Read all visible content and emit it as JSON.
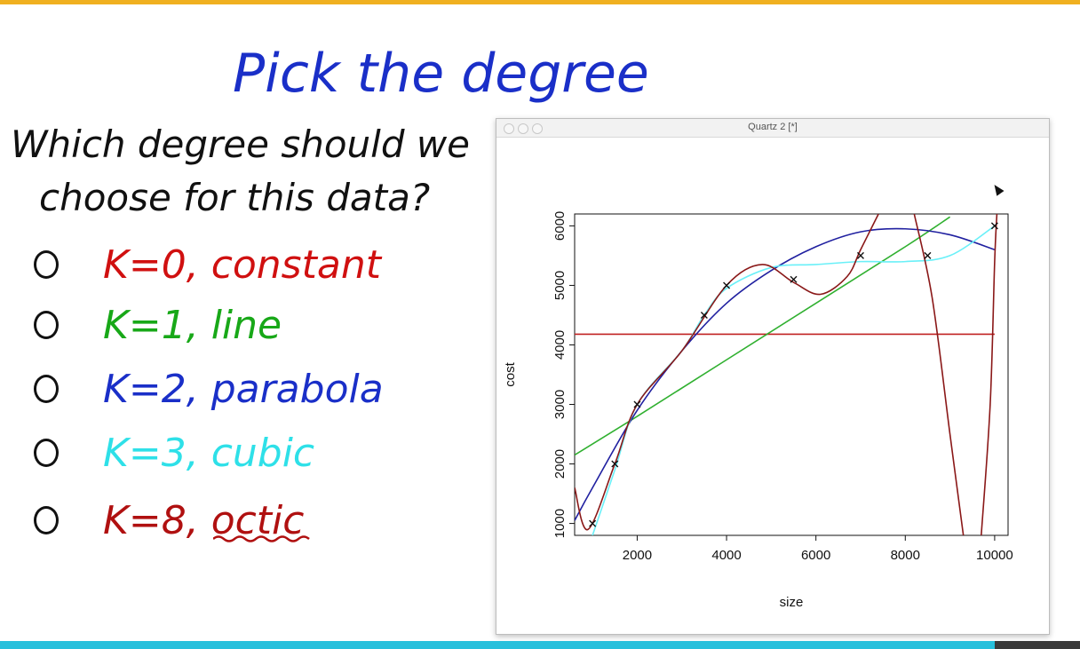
{
  "page": {
    "title": "Pick the degree",
    "question_line1": "Which degree should we",
    "question_line2": "choose for this data?",
    "options": [
      {
        "label": "K=0, constant",
        "color": "#d01010"
      },
      {
        "label": "K=1, line",
        "color": "#18a818"
      },
      {
        "label": "K=2, parabola",
        "color": "#1a2fc8"
      },
      {
        "label": "K=3, cubic",
        "color": "#2ee0e8"
      },
      {
        "label": "K=8, octic",
        "color": "#b01010"
      }
    ]
  },
  "window": {
    "title": "Quartz 2 [*]"
  },
  "chart_data": {
    "type": "scatter",
    "xlabel": "size",
    "ylabel": "cost",
    "xlim": [
      600,
      10300
    ],
    "ylim": [
      800,
      6200
    ],
    "x_ticks": [
      2000,
      4000,
      6000,
      8000,
      10000
    ],
    "y_ticks": [
      1000,
      2000,
      3000,
      4000,
      5000,
      6000
    ],
    "points": [
      {
        "x": 1000,
        "y": 1000
      },
      {
        "x": 1500,
        "y": 2000
      },
      {
        "x": 2000,
        "y": 3000
      },
      {
        "x": 3500,
        "y": 4500
      },
      {
        "x": 4000,
        "y": 5000
      },
      {
        "x": 5500,
        "y": 5100
      },
      {
        "x": 7000,
        "y": 5500
      },
      {
        "x": 8500,
        "y": 5500
      },
      {
        "x": 10000,
        "y": 6000
      }
    ],
    "series": [
      {
        "color": "#c02020",
        "x": [
          600,
          10000
        ],
        "y": [
          4180,
          4180
        ]
      },
      {
        "color": "#30b030",
        "x": [
          600,
          2000,
          4000,
          6000,
          8000,
          9000
        ],
        "y": [
          2150,
          2800,
          3750,
          4700,
          5650,
          6150
        ]
      },
      {
        "color": "#2020a0",
        "x": [
          600,
          1000,
          2000,
          3000,
          4000,
          5000,
          6000,
          7000,
          8000,
          9000,
          10000
        ],
        "y": [
          1050,
          1600,
          2900,
          3900,
          4700,
          5250,
          5650,
          5900,
          5950,
          5850,
          5600
        ]
      },
      {
        "color": "#6af0f8",
        "x": [
          1000,
          1500,
          2000,
          3000,
          3500,
          4000,
          5000,
          6000,
          7000,
          8000,
          9000,
          10000
        ],
        "y": [
          800,
          1900,
          3000,
          3900,
          4500,
          4950,
          5300,
          5350,
          5400,
          5400,
          5500,
          6000
        ]
      },
      {
        "color": "#8a1818",
        "x": [
          600,
          900,
          1500,
          2000,
          3000,
          4000,
          4800,
          5500,
          6100,
          6700,
          7000,
          7400
        ],
        "y": [
          1600,
          900,
          2000,
          3000,
          3900,
          5000,
          5350,
          5050,
          4850,
          5150,
          5600,
          6200
        ]
      },
      {
        "color": "#8a1818",
        "x": [
          8200,
          8600,
          9000,
          9300
        ],
        "y": [
          6200,
          4800,
          2500,
          800
        ]
      },
      {
        "color": "#8a1818",
        "x": [
          9700,
          9900,
          10000,
          10050
        ],
        "y": [
          800,
          3000,
          5400,
          6200
        ]
      }
    ]
  }
}
